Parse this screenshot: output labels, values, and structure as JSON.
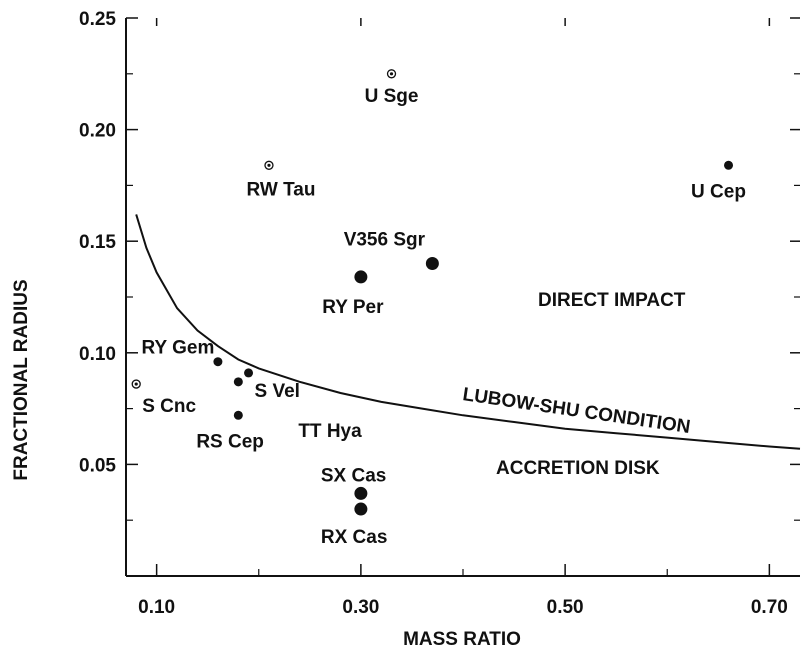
{
  "chart_data": {
    "type": "scatter",
    "title": "",
    "xlabel": "MASS RATIO",
    "ylabel": "FRACTIONAL RADIUS",
    "xlim": [
      0.07,
      0.73
    ],
    "ylim": [
      0.0,
      0.25
    ],
    "x_ticks": [
      0.1,
      0.3,
      0.5,
      0.7
    ],
    "x_tick_labels": [
      "0.10",
      "0.30",
      "0.50",
      "0.70"
    ],
    "y_ticks": [
      0.05,
      0.1,
      0.15,
      0.2,
      0.25
    ],
    "y_tick_labels": [
      "0.05",
      "0.10",
      "0.15",
      "0.20",
      "0.25"
    ],
    "grid": false,
    "points": [
      {
        "label": "U Sge",
        "x": 0.33,
        "y": 0.225,
        "marker": "dotted-circle"
      },
      {
        "label": "RW Tau",
        "x": 0.21,
        "y": 0.184,
        "marker": "dotted-circle"
      },
      {
        "label": "U Cep",
        "x": 0.66,
        "y": 0.184,
        "marker": "filled"
      },
      {
        "label": "V356 Sgr",
        "x": 0.37,
        "y": 0.14,
        "marker": "filled"
      },
      {
        "label": "RY Per",
        "x": 0.3,
        "y": 0.134,
        "marker": "filled"
      },
      {
        "label": "RY Gem",
        "x": 0.16,
        "y": 0.096,
        "marker": "filled"
      },
      {
        "label": "S Vel",
        "x": 0.19,
        "y": 0.091,
        "marker": "filled"
      },
      {
        "label": "TT Hya",
        "x": 0.18,
        "y": 0.087,
        "marker": "filled"
      },
      {
        "label": "S Cnc",
        "x": 0.08,
        "y": 0.086,
        "marker": "dotted-circle"
      },
      {
        "label": "RS Cep",
        "x": 0.18,
        "y": 0.072,
        "marker": "filled"
      },
      {
        "label": "SX Cas",
        "x": 0.3,
        "y": 0.037,
        "marker": "filled"
      },
      {
        "label": "RX Cas",
        "x": 0.3,
        "y": 0.03,
        "marker": "filled"
      }
    ],
    "curve": {
      "label": "LUBOW-SHU CONDITION",
      "x": [
        0.08,
        0.09,
        0.1,
        0.12,
        0.14,
        0.16,
        0.18,
        0.2,
        0.24,
        0.28,
        0.32,
        0.36,
        0.4,
        0.45,
        0.5,
        0.55,
        0.6,
        0.65,
        0.7,
        0.73
      ],
      "y": [
        0.162,
        0.147,
        0.136,
        0.12,
        0.11,
        0.103,
        0.097,
        0.093,
        0.087,
        0.082,
        0.078,
        0.075,
        0.072,
        0.069,
        0.066,
        0.064,
        0.062,
        0.06,
        0.058,
        0.057
      ]
    },
    "annotations": [
      "DIRECT IMPACT",
      "ACCRETION DISK"
    ]
  }
}
